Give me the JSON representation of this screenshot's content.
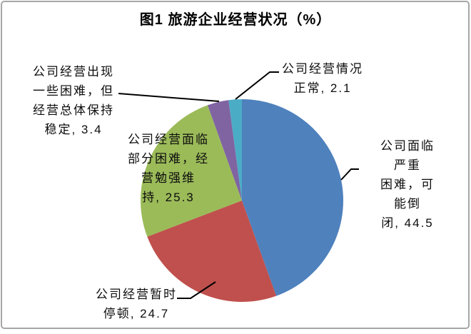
{
  "title": "图1  旅游企业经营状况（%）",
  "chart_data": {
    "type": "pie",
    "title": "图1  旅游企业经营状况（%）",
    "unit": "%",
    "start_angle_deg": 0,
    "direction": "clockwise",
    "legend": "none",
    "slices": [
      {
        "label": "公司面临严重困难，可能倒闭",
        "value": 44.5,
        "color": "#4F81BD"
      },
      {
        "label": "公司经营暂时停顿",
        "value": 24.7,
        "color": "#C0504D"
      },
      {
        "label": "公司经营面临部分困难，经营勉强维持",
        "value": 25.3,
        "color": "#9BBB59"
      },
      {
        "label": "公司经营出现一些困难，但经营总体保持稳定",
        "value": 3.4,
        "color": "#8064A2"
      },
      {
        "label": "公司经营情况正常",
        "value": 2.1,
        "color": "#4BACC6"
      }
    ]
  },
  "labels": {
    "purple": "公司经营出现\n一些困难，但\n经营总体保持\n稳定, 3.4",
    "teal": "公司经营情况\n正常, 2.1",
    "blue": "公司面临严重\n困难，可能倒\n闭, 44.5",
    "green": "公司经营面临\n部分困难，经\n营勉强维\n持, 25.3",
    "red": "公司经营暂时\n停顿, 24.7"
  },
  "frame": {
    "border_color": "#a6a6a6"
  }
}
